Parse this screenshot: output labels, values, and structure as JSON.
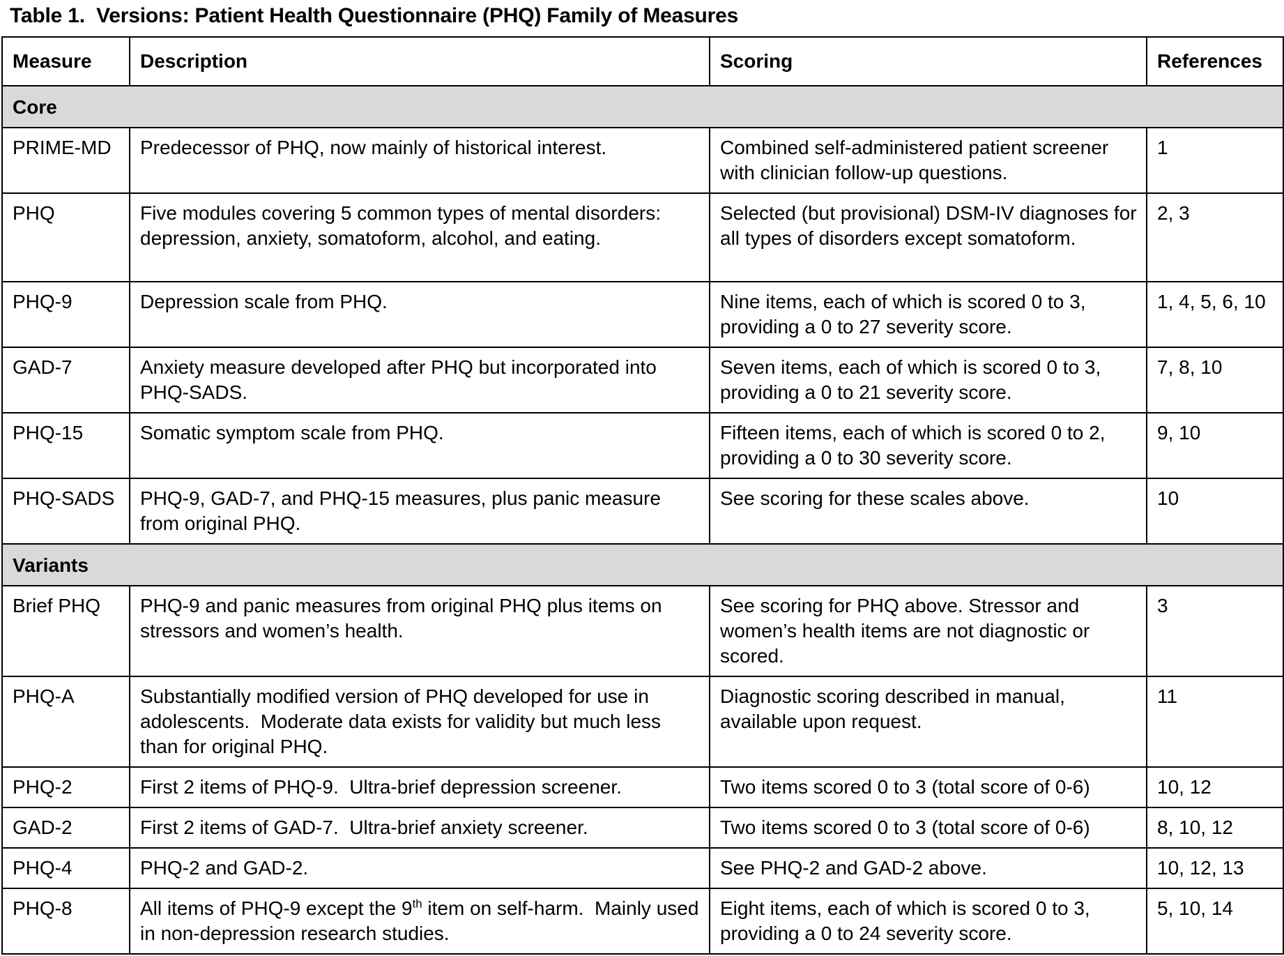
{
  "title": "Table 1.  Versions: Patient Health Questionnaire (PHQ) Family of Measures",
  "colors": {
    "section_bg": "#d9d9d9",
    "border": "#000000"
  },
  "table": {
    "headers": [
      "Measure",
      "Description",
      "Scoring",
      "References"
    ],
    "sections": [
      {
        "label": "Core",
        "rows": [
          {
            "measure": "PRIME-MD",
            "description": "Predecessor of PHQ, now mainly of historical interest.",
            "scoring": "Combined self-administered patient screener with clinician follow-up questions.",
            "references": "1"
          },
          {
            "measure": "PHQ",
            "description": "Five modules covering 5 common types of mental disorders:  depression, anxiety, somatoform, alcohol, and eating.",
            "scoring": "Selected (but provisional) DSM-IV diagnoses for all types of disorders except somatoform.",
            "references": "2, 3"
          },
          {
            "measure": "PHQ-9",
            "description": "Depression scale from PHQ.",
            "scoring": "Nine items, each of which is scored 0 to 3, providing a 0 to 27 severity score.",
            "references": "1, 4, 5, 6, 10"
          },
          {
            "measure": "GAD-7",
            "description": "Anxiety measure developed after PHQ but incorporated into PHQ-SADS.",
            "scoring": "Seven items, each of which is scored 0 to 3, providing a 0 to 21 severity score.",
            "references": "7, 8, 10"
          },
          {
            "measure": "PHQ-15",
            "description": "Somatic symptom scale from PHQ.",
            "scoring": "Fifteen items, each of which is scored 0 to 2, providing a 0 to 30 severity score.",
            "references": "9, 10"
          },
          {
            "measure": "PHQ-SADS",
            "description": "PHQ-9, GAD-7, and PHQ-15 measures, plus panic measure from original PHQ.",
            "scoring": "See scoring for these scales above.",
            "references": "10"
          }
        ]
      },
      {
        "label": "Variants",
        "rows": [
          {
            "measure": "Brief PHQ",
            "description": "PHQ-9 and panic measures from original PHQ plus items on stressors and women’s health.",
            "scoring": "See scoring for PHQ above. Stressor and women’s health items are not diagnostic or scored.",
            "references": "3"
          },
          {
            "measure": "PHQ-A",
            "description": "Substantially modified version of PHQ developed for use in adolescents.  Moderate data exists for validity but much less than for original PHQ.",
            "scoring": "Diagnostic scoring described in manual, available upon request.",
            "references": "11"
          },
          {
            "measure": "PHQ-2",
            "description": "First 2 items of PHQ-9.  Ultra-brief depression screener.",
            "scoring": "Two items scored 0 to 3 (total score of 0-6)",
            "references": "10, 12"
          },
          {
            "measure": "GAD-2",
            "description": "First 2 items of GAD-7.  Ultra-brief anxiety screener.",
            "scoring": "Two items scored 0 to 3 (total score of 0-6)",
            "references": "8, 10, 12"
          },
          {
            "measure": "PHQ-4",
            "description": "PHQ-2 and GAD-2.",
            "scoring": "See PHQ-2 and GAD-2 above.",
            "references": "10, 12, 13"
          },
          {
            "measure": "PHQ-8",
            "description": "All items of PHQ-9 except the 9^th^ item on self-harm.  Mainly used in non-depression research studies.",
            "scoring": "Eight items, each of which is scored 0 to 3, providing a 0 to 24 severity score.",
            "references": "5, 10, 14"
          }
        ]
      }
    ]
  }
}
